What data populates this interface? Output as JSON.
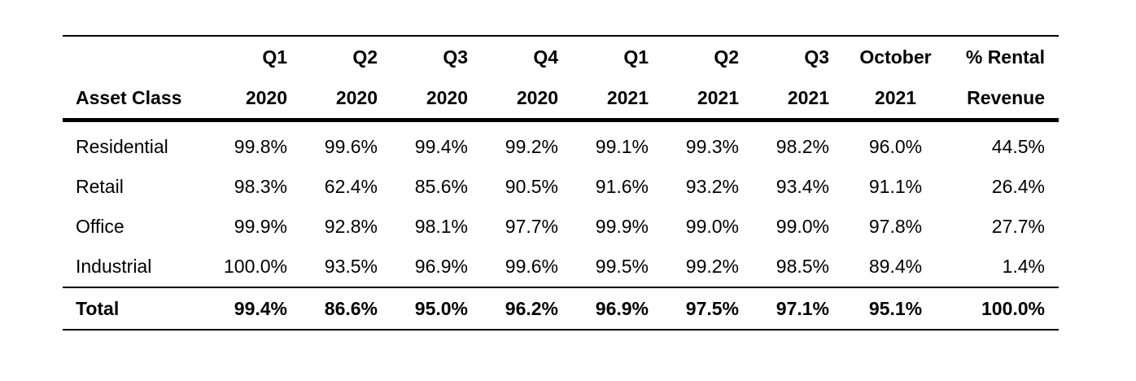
{
  "table": {
    "header_top": [
      "",
      "Q1",
      "Q2",
      "Q3",
      "Q4",
      "Q1",
      "Q2",
      "Q3",
      "October",
      "% Rental"
    ],
    "header_bottom": [
      "Asset Class",
      "2020",
      "2020",
      "2020",
      "2020",
      "2021",
      "2021",
      "2021",
      "2021",
      "Revenue"
    ],
    "rows": [
      [
        "Residential",
        "99.8%",
        "99.6%",
        "99.4%",
        "99.2%",
        "99.1%",
        "99.3%",
        "98.2%",
        "96.0%",
        "44.5%"
      ],
      [
        "Retail",
        "98.3%",
        "62.4%",
        "85.6%",
        "90.5%",
        "91.6%",
        "93.2%",
        "93.4%",
        "91.1%",
        "26.4%"
      ],
      [
        "Office",
        "99.9%",
        "92.8%",
        "98.1%",
        "97.7%",
        "99.9%",
        "99.0%",
        "99.0%",
        "97.8%",
        "27.7%"
      ],
      [
        "Industrial",
        "100.0%",
        "93.5%",
        "96.9%",
        "99.6%",
        "99.5%",
        "99.2%",
        "98.5%",
        "89.4%",
        "1.4%"
      ]
    ],
    "total": [
      "Total",
      "99.4%",
      "86.6%",
      "95.0%",
      "96.2%",
      "96.9%",
      "97.5%",
      "97.1%",
      "95.1%",
      "100.0%"
    ]
  }
}
